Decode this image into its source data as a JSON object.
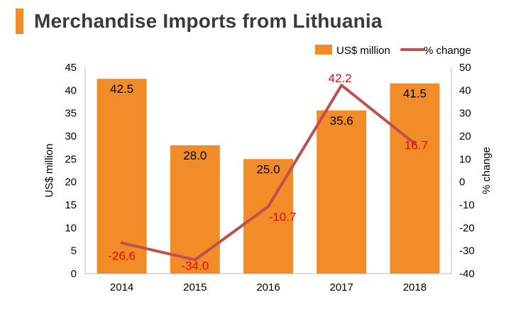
{
  "title": "Merchandise Imports from Lithuania",
  "colors": {
    "accent": "#f28c28",
    "bar": "#f28c28",
    "line": "#c0504d",
    "line_label": "#ff0000",
    "text": "#000000",
    "title": "#3a3a3a",
    "axis": "#bfbfbf"
  },
  "chart_data": {
    "type": "bar",
    "categories": [
      "2014",
      "2015",
      "2016",
      "2017",
      "2018"
    ],
    "series": [
      {
        "name": "US$ million",
        "type": "bar",
        "axis": "left",
        "values": [
          42.5,
          28.0,
          25.0,
          35.6,
          41.5
        ],
        "labels": [
          "42.5",
          "28.0",
          "25.0",
          "35.6",
          "41.5"
        ]
      },
      {
        "name": "% change",
        "type": "line",
        "axis": "right",
        "values": [
          -26.6,
          -34.0,
          -10.7,
          42.2,
          16.7
        ],
        "labels": [
          "-26.6",
          "-34.0",
          "-10.7",
          "42.2",
          "16.7"
        ]
      }
    ],
    "ylabel_left": "US$ million",
    "ylabel_right": "% change",
    "ylim_left": [
      0,
      45
    ],
    "ylim_right": [
      -40,
      50
    ],
    "yticks_left": [
      "0",
      "5",
      "10",
      "15",
      "20",
      "25",
      "30",
      "35",
      "40",
      "45"
    ],
    "yticks_right": [
      "-40",
      "-30",
      "-20",
      "-10",
      "0",
      "10",
      "20",
      "30",
      "40",
      "50"
    ],
    "grid": false,
    "legend_position": "top-right"
  }
}
